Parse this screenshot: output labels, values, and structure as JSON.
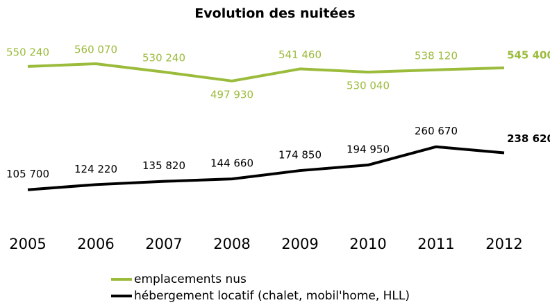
{
  "chart_data": {
    "type": "line",
    "title": "Evolution des nuitées",
    "categories": [
      "2005",
      "2006",
      "2007",
      "2008",
      "2009",
      "2010",
      "2011",
      "2012"
    ],
    "series": [
      {
        "name": "emplacements nus",
        "color": "#9bbb3b",
        "values": [
          550240,
          560070,
          530240,
          497930,
          541460,
          530040,
          538120,
          545400
        ],
        "value_labels": [
          "550 240",
          "560 070",
          "530 240",
          "497 930",
          "541 460",
          "530 040",
          "538 120",
          "545 400"
        ]
      },
      {
        "name": "hébergement locatif (chalet, mobil'home, HLL)",
        "color": "#000000",
        "values": [
          105700,
          124220,
          135820,
          144660,
          174850,
          194950,
          260670,
          238620
        ],
        "value_labels": [
          "105 700",
          "124 220",
          "135 820",
          "144 660",
          "174 850",
          "194 950",
          "260 670",
          "238 620"
        ]
      }
    ],
    "ylim": [
      40000,
      640000
    ]
  }
}
